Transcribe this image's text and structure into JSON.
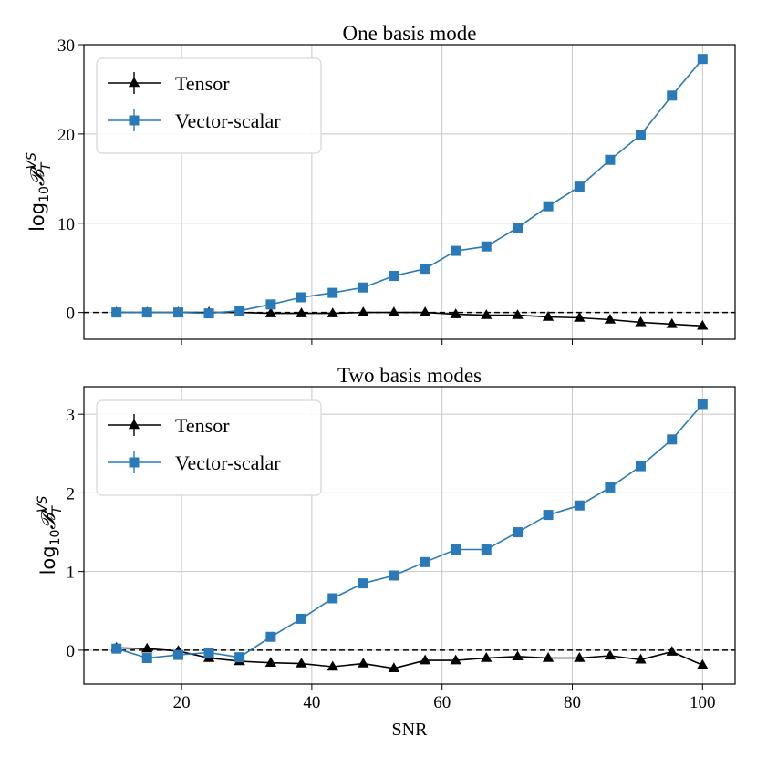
{
  "chart_data": [
    {
      "type": "line",
      "title": "One basis mode",
      "xlabel": "",
      "ylabel": "log10 B_T^VS",
      "ylabel_base": "log",
      "ylabel_sub": "10",
      "ylabel_symbol": "𝓑",
      "ylabel_sup": "VS",
      "ylabel_lower": "T",
      "xlim": [
        5,
        105
      ],
      "ylim": [
        -3,
        30
      ],
      "xticks": [
        20,
        40,
        60,
        80,
        100
      ],
      "yticks": [
        0,
        10,
        20,
        30
      ],
      "grid": true,
      "legend_position": "top-left",
      "reference_line": 0,
      "x": [
        10,
        14.7,
        19.5,
        24.2,
        28.9,
        33.7,
        38.4,
        43.2,
        47.9,
        52.6,
        57.4,
        62.1,
        66.8,
        71.6,
        76.3,
        81.1,
        85.8,
        90.5,
        95.3,
        100
      ],
      "series": [
        {
          "name": "Tensor",
          "color": "#000000",
          "marker": "triangle",
          "values": [
            0,
            0,
            0,
            0,
            0,
            -0.1,
            -0.1,
            -0.1,
            0,
            0,
            0,
            -0.2,
            -0.3,
            -0.3,
            -0.5,
            -0.6,
            -0.8,
            -1.1,
            -1.3,
            -1.5
          ]
        },
        {
          "name": "Vector-scalar",
          "color": "#2a7ab9",
          "marker": "square",
          "values": [
            0,
            0,
            0,
            -0.1,
            0.2,
            0.9,
            1.7,
            2.2,
            2.8,
            4.1,
            4.9,
            6.9,
            7.4,
            9.5,
            11.9,
            14.1,
            17.1,
            19.9,
            24.3,
            28.4
          ]
        }
      ]
    },
    {
      "type": "line",
      "title": "Two basis modes",
      "xlabel": "SNR",
      "ylabel": "log10 B_T^VS",
      "ylabel_base": "log",
      "ylabel_sub": "10",
      "ylabel_symbol": "𝓑",
      "ylabel_sup": "VS",
      "ylabel_lower": "T",
      "xlim": [
        5,
        105
      ],
      "ylim": [
        -0.43,
        3.35
      ],
      "xticks": [
        20,
        40,
        60,
        80,
        100
      ],
      "yticks": [
        0,
        1,
        2,
        3
      ],
      "grid": true,
      "legend_position": "top-left",
      "reference_line": 0,
      "x": [
        10,
        14.7,
        19.5,
        24.2,
        28.9,
        33.7,
        38.4,
        43.2,
        47.9,
        52.6,
        57.4,
        62.1,
        66.8,
        71.6,
        76.3,
        81.1,
        85.8,
        90.5,
        95.3,
        100
      ],
      "series": [
        {
          "name": "Tensor",
          "color": "#000000",
          "marker": "triangle",
          "values": [
            0.03,
            0.02,
            -0.01,
            -0.1,
            -0.14,
            -0.16,
            -0.17,
            -0.21,
            -0.17,
            -0.23,
            -0.13,
            -0.13,
            -0.1,
            -0.08,
            -0.1,
            -0.1,
            -0.07,
            -0.12,
            -0.02,
            -0.19
          ]
        },
        {
          "name": "Vector-scalar",
          "color": "#2a7ab9",
          "marker": "square",
          "values": [
            0.02,
            -0.1,
            -0.06,
            -0.03,
            -0.09,
            0.17,
            0.4,
            0.66,
            0.85,
            0.95,
            1.12,
            1.28,
            1.28,
            1.5,
            1.72,
            1.84,
            2.07,
            2.34,
            2.68,
            3.13
          ]
        }
      ]
    }
  ]
}
